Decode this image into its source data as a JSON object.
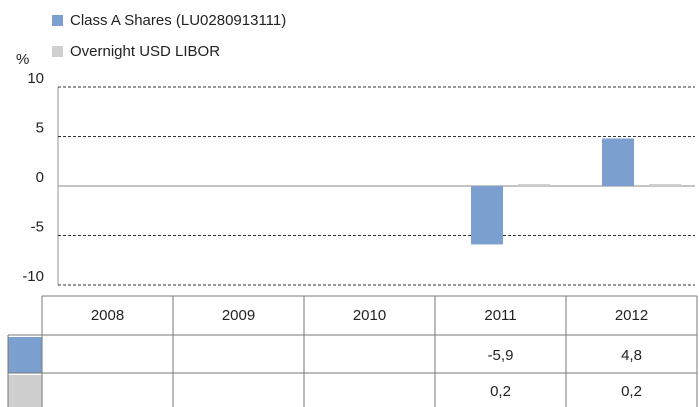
{
  "chart_data": {
    "type": "bar",
    "y_label": "%",
    "categories": [
      "2008",
      "2009",
      "2010",
      "2011",
      "2012"
    ],
    "series": [
      {
        "name": "Class A Shares (LU0280913111)",
        "color": "#7b9fcf",
        "values": [
          null,
          null,
          null,
          -5.9,
          4.8
        ],
        "value_labels": [
          null,
          null,
          null,
          "-5,9",
          "4,8"
        ]
      },
      {
        "name": "Overnight USD LIBOR",
        "color": "#cfcfcf",
        "values": [
          null,
          null,
          null,
          0.2,
          0.2
        ],
        "value_labels": [
          null,
          null,
          null,
          "0,2",
          "0,2"
        ]
      }
    ],
    "ylim": [
      -10,
      10
    ],
    "yticks": [
      10,
      5,
      0,
      -5,
      -10
    ],
    "grid": true
  }
}
